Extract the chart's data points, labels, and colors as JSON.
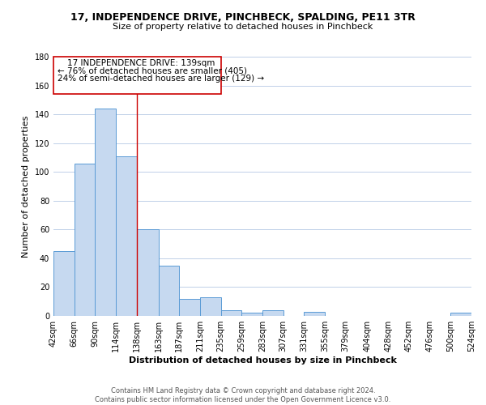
{
  "title": "17, INDEPENDENCE DRIVE, PINCHBECK, SPALDING, PE11 3TR",
  "subtitle": "Size of property relative to detached houses in Pinchbeck",
  "xlabel": "Distribution of detached houses by size in Pinchbeck",
  "ylabel": "Number of detached properties",
  "bar_color": "#c6d9f0",
  "bar_edge_color": "#5a9bd5",
  "background_color": "#ffffff",
  "grid_color": "#c0d0e8",
  "annotation_box_edge": "#cc0000",
  "annotation_lines": [
    "17 INDEPENDENCE DRIVE: 139sqm",
    "← 76% of detached houses are smaller (405)",
    "24% of semi-detached houses are larger (129) →"
  ],
  "property_line_x": 138,
  "x_edges": [
    42,
    66,
    90,
    114,
    138,
    163,
    187,
    211,
    235,
    259,
    283,
    307,
    331,
    355,
    379,
    404,
    428,
    452,
    476,
    500,
    524
  ],
  "bar_heights": [
    45,
    106,
    144,
    111,
    60,
    35,
    12,
    13,
    4,
    2,
    4,
    0,
    3,
    0,
    0,
    0,
    0,
    0,
    0,
    2
  ],
  "x_tick_labels": [
    "42sqm",
    "66sqm",
    "90sqm",
    "114sqm",
    "138sqm",
    "163sqm",
    "187sqm",
    "211sqm",
    "235sqm",
    "259sqm",
    "283sqm",
    "307sqm",
    "331sqm",
    "355sqm",
    "379sqm",
    "404sqm",
    "428sqm",
    "452sqm",
    "476sqm",
    "500sqm",
    "524sqm"
  ],
  "ylim": [
    0,
    180
  ],
  "yticks": [
    0,
    20,
    40,
    60,
    80,
    100,
    120,
    140,
    160,
    180
  ],
  "footer_text": "Contains HM Land Registry data © Crown copyright and database right 2024.\nContains public sector information licensed under the Open Government Licence v3.0.",
  "title_fontsize": 9,
  "subtitle_fontsize": 8,
  "xlabel_fontsize": 8,
  "ylabel_fontsize": 8,
  "tick_fontsize": 7,
  "annotation_fontsize": 7.5,
  "footer_fontsize": 6
}
